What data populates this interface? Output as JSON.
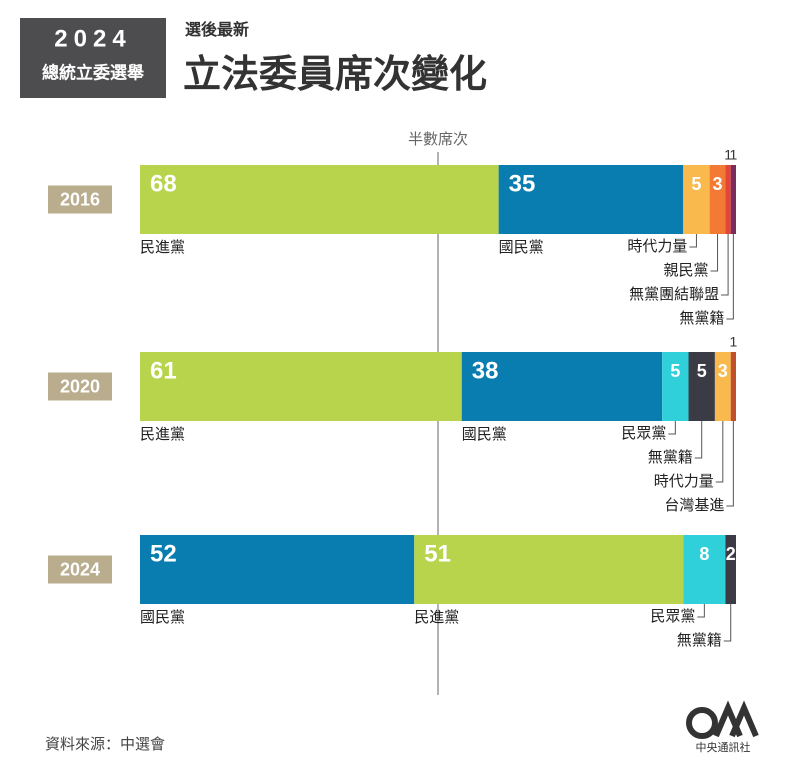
{
  "chart_data": {
    "type": "stacked-bar",
    "badge_year": "2024",
    "badge_text": "總統立委選舉",
    "subtitle": "選後最新",
    "title": "立法委員席次變化",
    "xlim": [
      0,
      113
    ],
    "half_line": {
      "value": 56.5,
      "label": "半數席次"
    },
    "categories": [
      "2016",
      "2020",
      "2024"
    ],
    "rows": [
      {
        "segments": [
          {
            "name": "民進黨",
            "value": 68,
            "color": "#b7d44c"
          },
          {
            "name": "國民黨",
            "value": 35,
            "color": "#0a7db0"
          },
          {
            "name": "時代力量",
            "value": 5,
            "color": "#f9b94c"
          },
          {
            "name": "親民黨",
            "value": 3,
            "color": "#f27a35"
          },
          {
            "name": "無黨團結聯盟",
            "value": 1,
            "color": "#e2453a"
          },
          {
            "name": "無黨籍",
            "value": 1,
            "color": "#7a2d5c"
          }
        ]
      },
      {
        "segments": [
          {
            "name": "民進黨",
            "value": 61,
            "color": "#b7d44c"
          },
          {
            "name": "國民黨",
            "value": 38,
            "color": "#0a7db0"
          },
          {
            "name": "民眾黨",
            "value": 5,
            "color": "#2fd0d9"
          },
          {
            "name": "無黨籍",
            "value": 5,
            "color": "#3b3b45"
          },
          {
            "name": "時代力量",
            "value": 3,
            "color": "#f9b94c"
          },
          {
            "name": "台灣基進",
            "value": 1,
            "color": "#c0502a"
          }
        ]
      },
      {
        "segments": [
          {
            "name": "國民黨",
            "value": 52,
            "color": "#0a7db0"
          },
          {
            "name": "民進黨",
            "value": 51,
            "color": "#b7d44c"
          },
          {
            "name": "民眾黨",
            "value": 8,
            "color": "#2fd0d9"
          },
          {
            "name": "無黨籍",
            "value": 2,
            "color": "#3b3b45"
          }
        ]
      }
    ],
    "source": "資料來源：中選會",
    "publisher": "中央通訊社"
  }
}
